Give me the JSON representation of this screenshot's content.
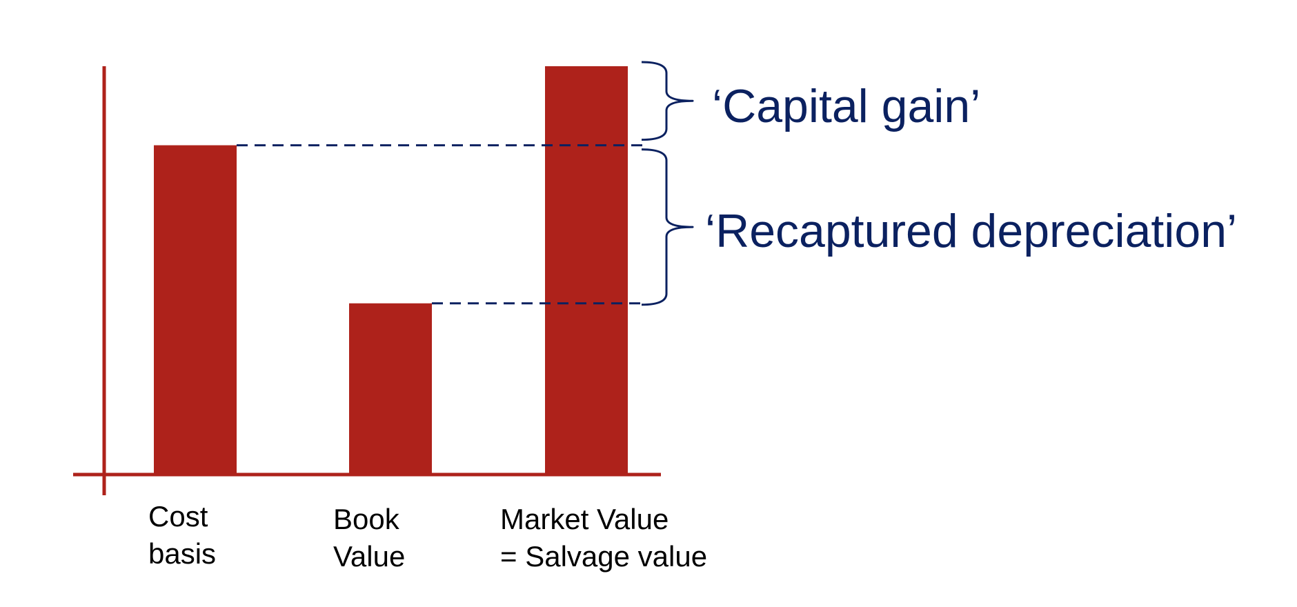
{
  "colors": {
    "bar": "#ae221b",
    "axis": "#ae221b",
    "guide": "#0b2160",
    "annotation_text": "#0b2160",
    "label_text": "#000000"
  },
  "chart_data": {
    "type": "bar",
    "categories": [
      {
        "line1": "Cost",
        "line2": "basis"
      },
      {
        "line1": "Book",
        "line2": "Value"
      },
      {
        "line1": "Market Value",
        "line2": "= Salvage value"
      }
    ],
    "values": [
      100,
      52,
      124
    ],
    "annotations": [
      {
        "id": "capital-gain",
        "text": "‘Capital gain’",
        "from": 100,
        "to": 124
      },
      {
        "id": "recaptured-depreciation",
        "text": "‘Recaptured depreciation’",
        "from": 52,
        "to": 100
      }
    ]
  }
}
